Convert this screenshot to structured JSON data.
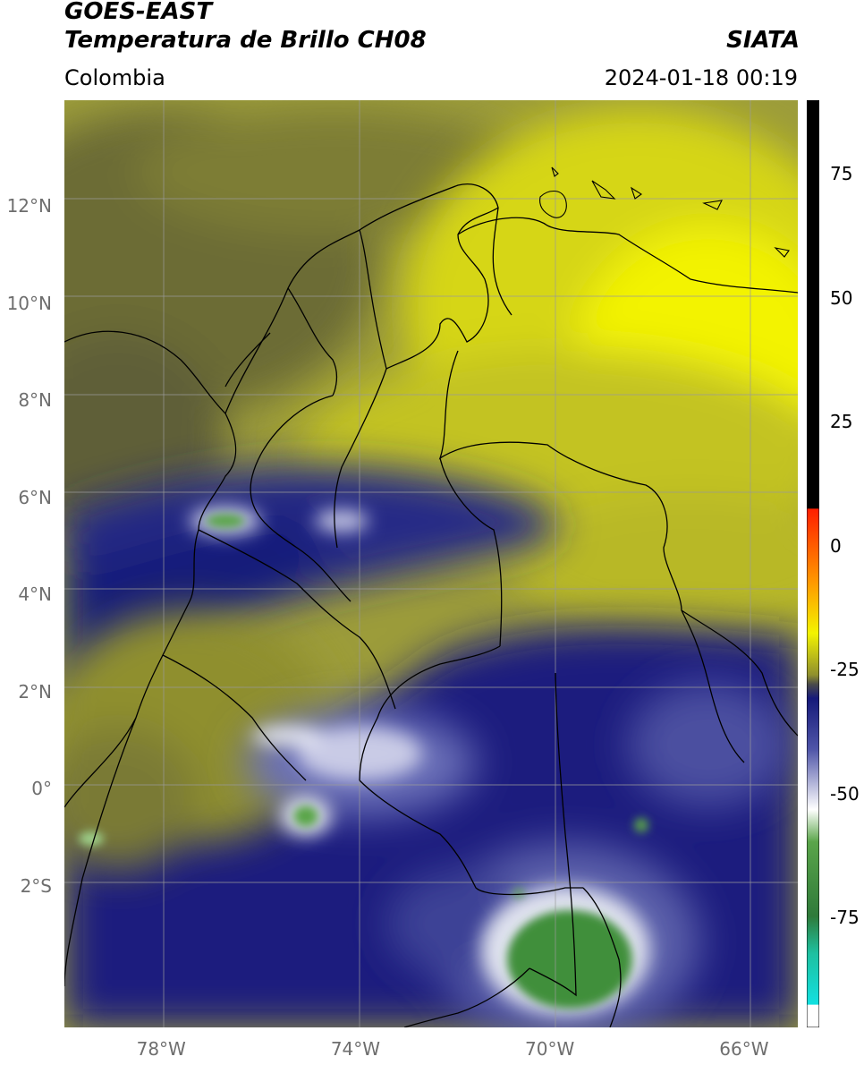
{
  "header": {
    "satellite": "GOES-EAST",
    "product": "Temperatura de Brillo CH08",
    "agency": "SIATA",
    "region": "Colombia",
    "datetime": "2024-01-18 00:19"
  },
  "map": {
    "lon_range": [
      -80,
      -64.9
    ],
    "lat_range": [
      -4.9,
      14.2
    ],
    "lat_ticks": [
      {
        "value": 12,
        "label": "12°N"
      },
      {
        "value": 10,
        "label": "10°N"
      },
      {
        "value": 8,
        "label": "8°N"
      },
      {
        "value": 6,
        "label": "6°N"
      },
      {
        "value": 4,
        "label": "4°N"
      },
      {
        "value": 2,
        "label": "2°N"
      },
      {
        "value": 0,
        "label": "0°"
      },
      {
        "value": -2,
        "label": "2°S"
      }
    ],
    "lon_ticks": [
      {
        "value": -78,
        "label": "78°W"
      },
      {
        "value": -74,
        "label": "74°W"
      },
      {
        "value": -70,
        "label": "70°W"
      },
      {
        "value": -66,
        "label": "66°W"
      }
    ],
    "grid": true
  },
  "colorbar": {
    "range": [
      -97,
      90
    ],
    "ticks": [
      {
        "value": 75,
        "label": "75"
      },
      {
        "value": 50,
        "label": "50"
      },
      {
        "value": 25,
        "label": "25"
      },
      {
        "value": 0,
        "label": "0"
      },
      {
        "value": -25,
        "label": "-25"
      },
      {
        "value": -50,
        "label": "-50"
      },
      {
        "value": -75,
        "label": "-75"
      }
    ],
    "colors": {
      "black": "#000000",
      "red": "#ff1f00",
      "orange": "#ff9900",
      "yellow": "#f3f300",
      "olive": "#8f8f2e",
      "navy": "#161a7a",
      "white": "#ffffff",
      "green": "#3f8f3a",
      "cyan": "#12e0e0"
    }
  }
}
